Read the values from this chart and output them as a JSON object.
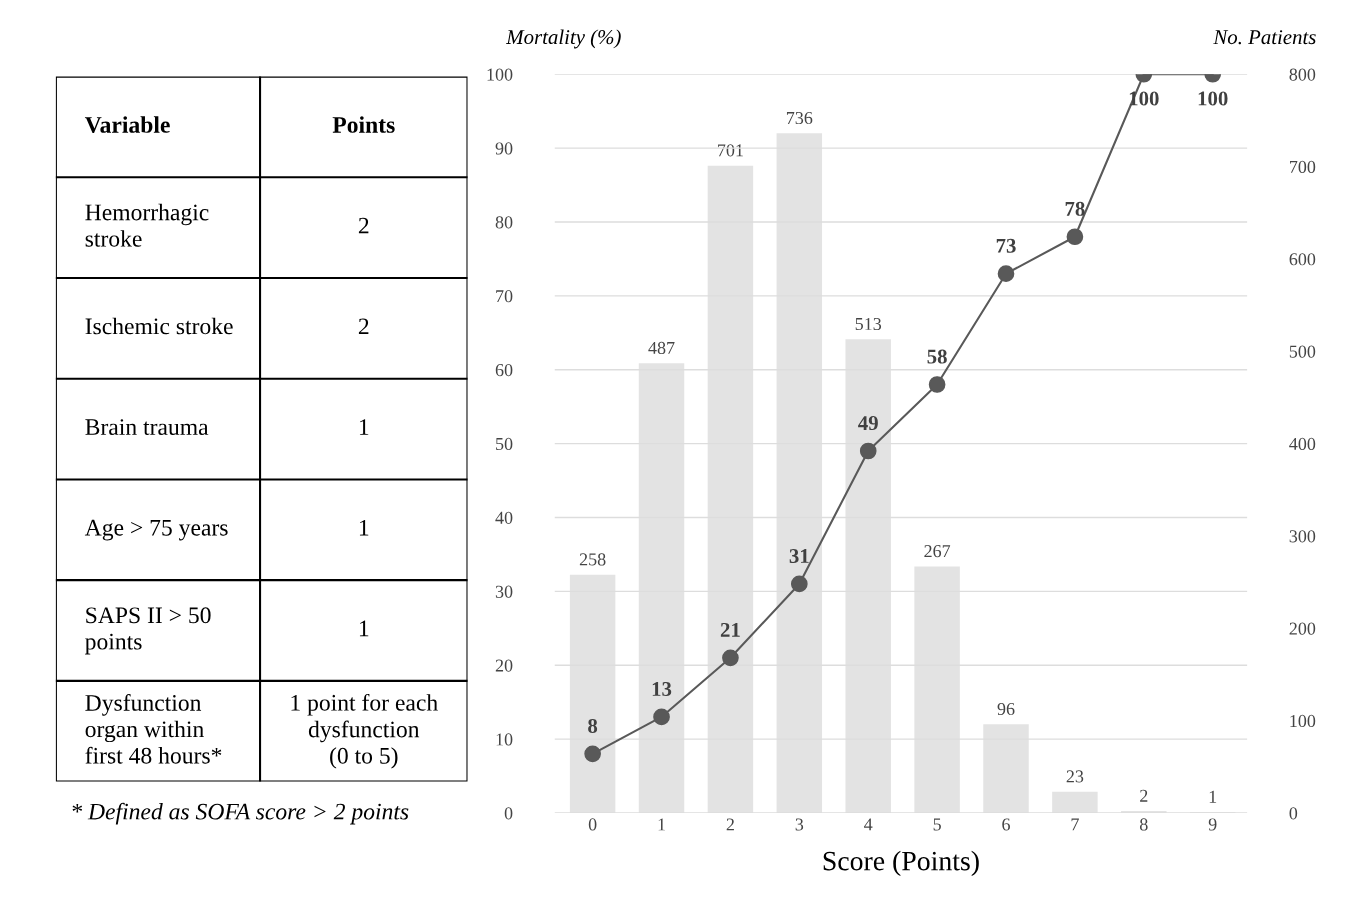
{
  "chart_data": [
    {
      "type": "other",
      "annotations": [
        "Variable",
        "Points",
        "Hemorrhagic\nstroke",
        "2",
        "Ischemic stroke",
        "2",
        "Brain trauma",
        "1",
        "Age > 75 years",
        "1",
        "SAPS II > 50\npoints",
        "1",
        "Dysfunction\norgan within\nfirst 48 hours*",
        "1 point for each\ndysfunction\n(0 to 5)",
        "* Defined as SOFA score > 2 points"
      ]
    },
    {
      "type": "bar",
      "xlabel": "Score (Points)",
      "ylabel": "Mortality (%)",
      "y2label": "No. Patients",
      "categories": [
        "0",
        "1",
        "2",
        "3",
        "4",
        "5",
        "6",
        "7",
        "8",
        "9"
      ],
      "series": [
        {
          "type": "bar",
          "axis": "y2",
          "color": "#e3e3e3",
          "values": [
            258,
            487,
            701,
            736,
            513,
            267,
            96,
            23,
            2,
            1
          ]
        },
        {
          "type": "line",
          "axis": "y",
          "color": "#595959",
          "values": [
            8,
            13,
            21,
            31,
            49,
            58,
            73,
            78,
            100,
            100
          ]
        }
      ],
      "ylim": [
        0,
        100
      ],
      "yticks": [
        0,
        10,
        20,
        30,
        40,
        50,
        60,
        70,
        80,
        90,
        100
      ],
      "y2lim": [
        0,
        800
      ],
      "y2ticks": [
        0,
        100,
        200,
        300,
        400,
        500,
        600,
        700,
        800
      ],
      "grid": "y",
      "marker": "circle",
      "line_style": "solid",
      "data_labels": true
    }
  ]
}
